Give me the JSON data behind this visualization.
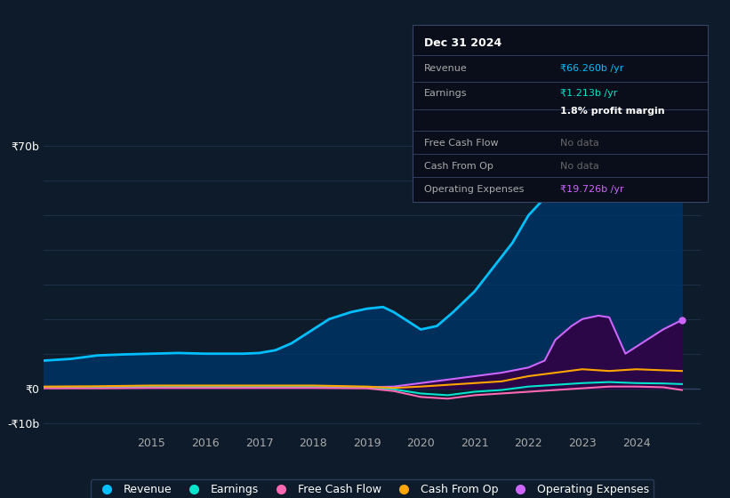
{
  "bg_color": "#0d1b2a",
  "plot_bg_color": "#0d1b2a",
  "grid_color": "#1e3048",
  "text_color": "#ffffff",
  "label_color": "#aaaaaa",
  "legend": [
    {
      "label": "Revenue",
      "color": "#00bfff"
    },
    {
      "label": "Earnings",
      "color": "#00e5cc"
    },
    {
      "label": "Free Cash Flow",
      "color": "#ff69b4"
    },
    {
      "label": "Cash From Op",
      "color": "#ffa500"
    },
    {
      "label": "Operating Expenses",
      "color": "#cc66ff"
    }
  ],
  "tooltip": {
    "date": "Dec 31 2024",
    "rows": [
      {
        "label": "Revenue",
        "value": "₹66.260b /yr",
        "value_color": "#00bfff"
      },
      {
        "label": "Earnings",
        "value": "₹1.213b /yr",
        "value_color": "#00e5cc"
      },
      {
        "label": "",
        "value": "1.8% profit margin",
        "value_color": "#ffffff",
        "bold": true
      },
      {
        "label": "Free Cash Flow",
        "value": "No data",
        "value_color": "#666666"
      },
      {
        "label": "Cash From Op",
        "value": "No data",
        "value_color": "#666666"
      },
      {
        "label": "Operating Expenses",
        "value": "₹19.726b /yr",
        "value_color": "#cc66ff"
      }
    ]
  },
  "revenue": {
    "x": [
      2013.0,
      2013.5,
      2014.0,
      2014.5,
      2015.0,
      2015.5,
      2016.0,
      2016.3,
      2016.7,
      2017.0,
      2017.3,
      2017.6,
      2018.0,
      2018.3,
      2018.7,
      2019.0,
      2019.3,
      2019.5,
      2019.8,
      2020.0,
      2020.3,
      2020.6,
      2021.0,
      2021.3,
      2021.7,
      2022.0,
      2022.3,
      2022.5,
      2022.7,
      2023.0,
      2023.3,
      2023.5,
      2023.7,
      2024.0,
      2024.3,
      2024.6,
      2024.85
    ],
    "y": [
      8,
      8.5,
      9.5,
      9.8,
      10.0,
      10.2,
      10.0,
      10.0,
      10.0,
      10.2,
      11,
      13,
      17,
      20,
      22,
      23,
      23.5,
      22,
      19,
      17,
      18,
      22,
      28,
      34,
      42,
      50,
      55,
      60,
      58,
      65,
      68,
      63,
      62,
      63,
      64,
      65,
      66.26
    ],
    "color": "#00bfff",
    "fill_color": "#003366",
    "linewidth": 2
  },
  "earnings": {
    "x": [
      2013.0,
      2014.0,
      2015.0,
      2016.0,
      2017.0,
      2018.0,
      2019.0,
      2019.5,
      2020.0,
      2020.5,
      2021.0,
      2021.5,
      2022.0,
      2022.5,
      2023.0,
      2023.5,
      2024.0,
      2024.5,
      2024.85
    ],
    "y": [
      0.2,
      0.3,
      0.5,
      0.4,
      0.5,
      0.5,
      0.2,
      -0.3,
      -1.5,
      -2,
      -1,
      -0.5,
      0.5,
      1.0,
      1.5,
      1.8,
      1.5,
      1.4,
      1.213
    ],
    "color": "#00e5cc",
    "linewidth": 1.5
  },
  "free_cash_flow": {
    "x": [
      2013.0,
      2014.0,
      2015.0,
      2016.0,
      2017.0,
      2018.0,
      2019.0,
      2019.5,
      2020.0,
      2020.5,
      2021.0,
      2021.5,
      2022.0,
      2022.5,
      2023.0,
      2023.5,
      2024.0,
      2024.5,
      2024.85
    ],
    "y": [
      0.0,
      0.0,
      0.1,
      0.1,
      0.1,
      0.1,
      0.0,
      -0.8,
      -2.5,
      -3,
      -2,
      -1.5,
      -1.0,
      -0.5,
      0.0,
      0.5,
      0.5,
      0.3,
      -0.5
    ],
    "color": "#ff69b4",
    "linewidth": 1.5
  },
  "cash_from_op": {
    "x": [
      2013.0,
      2014.0,
      2015.0,
      2016.0,
      2017.0,
      2018.0,
      2019.0,
      2019.5,
      2020.0,
      2020.5,
      2021.0,
      2021.5,
      2022.0,
      2022.5,
      2023.0,
      2023.5,
      2024.0,
      2024.5,
      2024.85
    ],
    "y": [
      0.5,
      0.6,
      0.8,
      0.8,
      0.8,
      0.8,
      0.5,
      0.1,
      0.5,
      1.0,
      1.5,
      2.0,
      3.5,
      4.5,
      5.5,
      5.0,
      5.5,
      5.2,
      5.0
    ],
    "color": "#ffa500",
    "linewidth": 1.5
  },
  "operating_expenses": {
    "x": [
      2013.0,
      2014.0,
      2015.0,
      2016.0,
      2017.0,
      2018.0,
      2019.0,
      2019.5,
      2020.0,
      2020.5,
      2021.0,
      2021.5,
      2022.0,
      2022.3,
      2022.5,
      2022.8,
      2023.0,
      2023.3,
      2023.5,
      2023.8,
      2024.0,
      2024.3,
      2024.5,
      2024.85
    ],
    "y": [
      0.3,
      0.4,
      0.5,
      0.5,
      0.5,
      0.5,
      0.3,
      0.5,
      1.5,
      2.5,
      3.5,
      4.5,
      6.0,
      8.0,
      14.0,
      18.0,
      20.0,
      21.0,
      20.5,
      10.0,
      12.0,
      15.0,
      17.0,
      19.726
    ],
    "color": "#cc66ff",
    "fill_color": "#330044",
    "linewidth": 1.5
  }
}
